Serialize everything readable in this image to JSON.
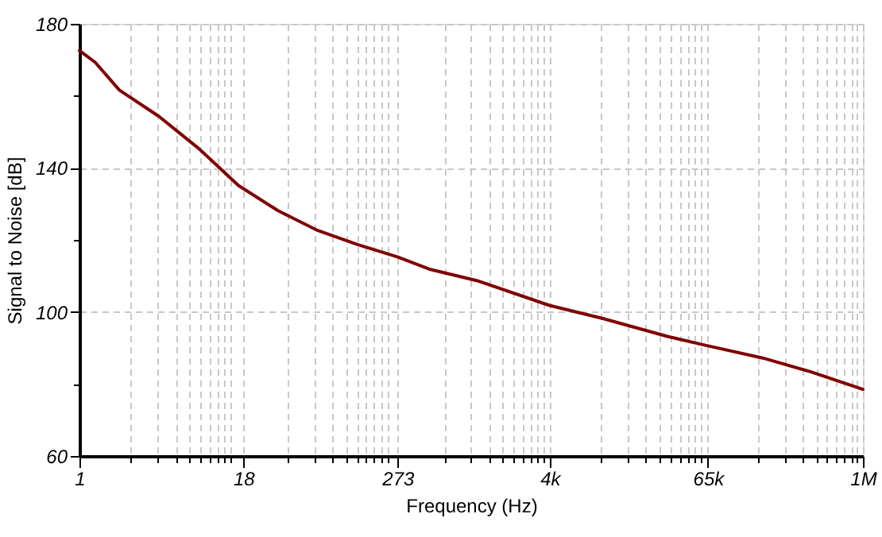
{
  "chart_data": {
    "type": "line",
    "xlabel": "Frequency (Hz)",
    "ylabel": "Signal to Noise [dB]",
    "log": "x",
    "grid": true,
    "xlim": [
      1,
      1000000
    ],
    "ylim": [
      60,
      180
    ],
    "xticks": [
      {
        "value": 1,
        "label": "1"
      },
      {
        "value": 2.485,
        "label": null
      },
      {
        "value": 3.97,
        "label": null
      },
      {
        "value": 5.455,
        "label": null
      },
      {
        "value": 6.94,
        "label": null
      },
      {
        "value": 8.424,
        "label": null
      },
      {
        "value": 9.909,
        "label": null
      },
      {
        "value": 11.394,
        "label": null
      },
      {
        "value": 12.879,
        "label": null
      },
      {
        "value": 14.364,
        "label": null
      },
      {
        "value": 18,
        "label": "18"
      },
      {
        "value": 39.38,
        "label": null
      },
      {
        "value": 62.92,
        "label": null
      },
      {
        "value": 86.45,
        "label": null
      },
      {
        "value": 109.98,
        "label": null
      },
      {
        "value": 133.52,
        "label": null
      },
      {
        "value": 157.05,
        "label": null
      },
      {
        "value": 180.59,
        "label": null
      },
      {
        "value": 204.12,
        "label": null
      },
      {
        "value": 227.66,
        "label": null
      },
      {
        "value": 273,
        "label": "273"
      },
      {
        "value": 624.2,
        "label": null
      },
      {
        "value": 997.2,
        "label": null
      },
      {
        "value": 1370.2,
        "label": null
      },
      {
        "value": 1743.2,
        "label": null
      },
      {
        "value": 2116.1,
        "label": null
      },
      {
        "value": 2489.1,
        "label": null
      },
      {
        "value": 2862.1,
        "label": null
      },
      {
        "value": 3235.1,
        "label": null
      },
      {
        "value": 3608.1,
        "label": null
      },
      {
        "value": 4000,
        "label": "4k"
      },
      {
        "value": 9893,
        "label": null
      },
      {
        "value": 15804,
        "label": null
      },
      {
        "value": 21716,
        "label": null
      },
      {
        "value": 27627,
        "label": null
      },
      {
        "value": 33539,
        "label": null
      },
      {
        "value": 39450,
        "label": null
      },
      {
        "value": 45362,
        "label": null
      },
      {
        "value": 51273,
        "label": null
      },
      {
        "value": 57185,
        "label": null
      },
      {
        "value": 65000,
        "label": "65k"
      },
      {
        "value": 156786,
        "label": null
      },
      {
        "value": 250476,
        "label": null
      },
      {
        "value": 344166,
        "label": null
      },
      {
        "value": 437856,
        "label": null
      },
      {
        "value": 531546,
        "label": null
      },
      {
        "value": 625236,
        "label": null
      },
      {
        "value": 718926,
        "label": null
      },
      {
        "value": 812616,
        "label": null
      },
      {
        "value": 906306,
        "label": null
      },
      {
        "value": 1000000,
        "label": "1M"
      }
    ],
    "yticks": [
      60,
      {
        "value": 80,
        "label": null
      },
      100,
      {
        "value": 120,
        "label": null
      },
      140,
      {
        "value": 160,
        "label": null
      },
      180
    ],
    "series": [
      {
        "color": "#800000",
        "line_style": "solid",
        "marker": "none",
        "x": [
          1,
          1.32,
          2.02,
          4.06,
          8.18,
          16.5,
          33.2,
          66.9,
          135,
          272,
          476,
          1104,
          3981,
          10380,
          31850,
          63096,
          171000,
          396000,
          1000000
        ],
        "values": [
          172.6,
          169.3,
          161.6,
          154.3,
          145.4,
          135.1,
          128.1,
          122.6,
          118.7,
          115.3,
          111.9,
          108.7,
          101.8,
          98.1,
          93.2,
          90.7,
          87.2,
          83.4,
          78.5
        ]
      }
    ]
  }
}
